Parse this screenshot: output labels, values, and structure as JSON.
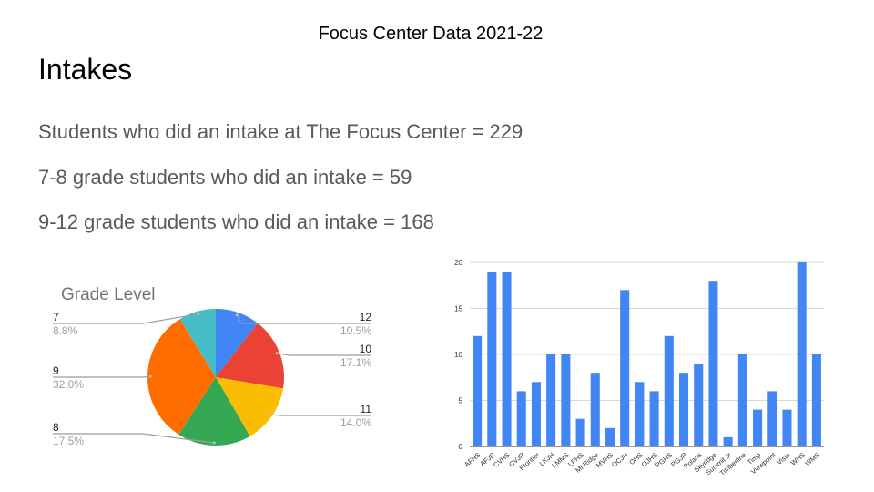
{
  "header": "Focus Center Data 2021-22",
  "title": "Intakes",
  "stats": [
    "Students who did an intake at The Focus Center = 229",
    "7-8 grade students who did an intake = 59",
    "9-12 grade students who did an intake = 168"
  ],
  "chart_data": [
    {
      "type": "pie",
      "title": "Grade Level",
      "slices": [
        {
          "label": "12",
          "percent": "10.5%",
          "value": 10.5,
          "color": "#4285F4"
        },
        {
          "label": "10",
          "percent": "17.1%",
          "value": 17.1,
          "color": "#EA4335"
        },
        {
          "label": "11",
          "percent": "14.0%",
          "value": 14.0,
          "color": "#FBBC04"
        },
        {
          "label": "8",
          "percent": "17.5%",
          "value": 17.5,
          "color": "#34A853"
        },
        {
          "label": "9",
          "percent": "32.0%",
          "value": 32.0,
          "color": "#FF6D01"
        },
        {
          "label": "7",
          "percent": "8.8%",
          "value": 8.8,
          "color": "#46BDC6"
        }
      ]
    },
    {
      "type": "bar",
      "categories": [
        "AFHS",
        "AFJR",
        "CVHS",
        "CVJR",
        "Frontier",
        "LKJH",
        "LMMS",
        "LPHS",
        "Mt Ridge",
        "MVHS",
        "OCJH",
        "OHS",
        "OJHS",
        "PGHS",
        "PGJR",
        "Polaris",
        "Skyridge",
        "Summit Jr",
        "Timberline",
        "Timp",
        "Viewpoint",
        "Vista",
        "WHS",
        "WMS"
      ],
      "values": [
        12,
        19,
        19,
        6,
        7,
        10,
        10,
        3,
        8,
        2,
        17,
        7,
        6,
        12,
        8,
        9,
        18,
        1,
        10,
        4,
        6,
        4,
        20,
        10
      ],
      "ylim": [
        0,
        20
      ],
      "yticks": [
        "0",
        "5",
        "10",
        "15",
        "20"
      ],
      "grid": true,
      "color": "#4285F4"
    }
  ]
}
